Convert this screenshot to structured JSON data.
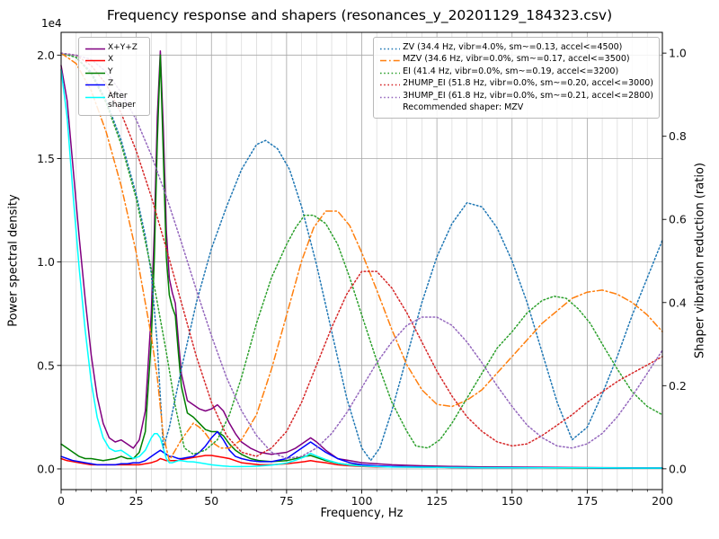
{
  "chart_data": {
    "type": "line",
    "title": "Frequency response and shapers (resonances_y_20201129_184323.csv)",
    "xlabel": "Frequency, Hz",
    "ylabel_left": "Power spectral density",
    "ylabel_right": "Shaper vibration reduction (ratio)",
    "offset_label_left": "1e4",
    "xlim": [
      0,
      200
    ],
    "xticks": [
      0,
      25,
      50,
      75,
      100,
      125,
      150,
      175,
      200
    ],
    "ylim_left": [
      -0.1,
      2.11
    ],
    "yticks_left": [
      0,
      0.5,
      1.0,
      1.5,
      2.0
    ],
    "ytick_labels_left": [
      "0.0",
      "0.5",
      "1.0",
      "1.5",
      "2.0"
    ],
    "ylim_right": [
      -0.05,
      1.05
    ],
    "yticks_right": [
      0.0,
      0.2,
      0.4,
      0.6,
      0.8,
      1.0
    ],
    "grid": {
      "major": true,
      "minor_x_step": 5
    },
    "recommended_note": "Recommended shaper: MZV",
    "psd_series": [
      {
        "key": "xyz",
        "label": "X+Y+Z",
        "color": "#800080",
        "style": "solid",
        "x": [
          0,
          2,
          4,
          6,
          8,
          10,
          12,
          14,
          16,
          18,
          20,
          22,
          24,
          26,
          28,
          30,
          31,
          32,
          33,
          34,
          35,
          36,
          37,
          38,
          39,
          40,
          42,
          44,
          46,
          48,
          50,
          52,
          54,
          56,
          58,
          60,
          63,
          66,
          70,
          75,
          78,
          81,
          83,
          85,
          88,
          92,
          96,
          100,
          105,
          110,
          120,
          130,
          140,
          150,
          160,
          170,
          180,
          190,
          200
        ],
        "y": [
          1.95,
          1.78,
          1.45,
          1.12,
          0.82,
          0.55,
          0.35,
          0.22,
          0.15,
          0.13,
          0.14,
          0.12,
          0.1,
          0.14,
          0.28,
          0.75,
          1.15,
          1.7,
          2.02,
          1.65,
          1.15,
          0.92,
          0.85,
          0.8,
          0.62,
          0.46,
          0.33,
          0.31,
          0.29,
          0.28,
          0.29,
          0.31,
          0.28,
          0.22,
          0.17,
          0.13,
          0.1,
          0.08,
          0.07,
          0.08,
          0.1,
          0.13,
          0.15,
          0.13,
          0.09,
          0.05,
          0.04,
          0.03,
          0.025,
          0.02,
          0.015,
          0.012,
          0.01,
          0.009,
          0.008,
          0.007,
          0.006,
          0.005,
          0.005
        ]
      },
      {
        "key": "x",
        "label": "X",
        "color": "#ff0000",
        "style": "solid",
        "x": [
          0,
          2,
          4,
          6,
          8,
          10,
          12,
          14,
          16,
          18,
          20,
          22,
          24,
          26,
          28,
          30,
          31,
          32,
          33,
          34,
          35,
          36,
          37,
          38,
          39,
          40,
          42,
          44,
          46,
          48,
          50,
          52,
          54,
          56,
          58,
          60,
          63,
          66,
          70,
          75,
          78,
          81,
          83,
          85,
          88,
          92,
          96,
          100,
          105,
          110,
          120,
          130,
          140,
          150,
          160,
          170,
          180,
          190,
          200
        ],
        "y": [
          0.05,
          0.04,
          0.035,
          0.03,
          0.025,
          0.02,
          0.02,
          0.02,
          0.02,
          0.02,
          0.02,
          0.02,
          0.02,
          0.02,
          0.025,
          0.03,
          0.035,
          0.04,
          0.05,
          0.045,
          0.04,
          0.04,
          0.04,
          0.04,
          0.04,
          0.045,
          0.05,
          0.055,
          0.06,
          0.065,
          0.065,
          0.06,
          0.055,
          0.05,
          0.04,
          0.03,
          0.025,
          0.02,
          0.02,
          0.025,
          0.03,
          0.035,
          0.04,
          0.035,
          0.03,
          0.02,
          0.015,
          0.012,
          0.01,
          0.01,
          0.008,
          0.007,
          0.006,
          0.006,
          0.005,
          0.005,
          0.004,
          0.004,
          0.004
        ]
      },
      {
        "key": "y",
        "label": "Y",
        "color": "#008000",
        "style": "solid",
        "x": [
          0,
          2,
          4,
          6,
          8,
          10,
          12,
          14,
          16,
          18,
          20,
          22,
          24,
          26,
          28,
          30,
          31,
          32,
          33,
          34,
          35,
          36,
          37,
          38,
          39,
          40,
          42,
          44,
          46,
          48,
          50,
          52,
          54,
          56,
          58,
          60,
          63,
          66,
          70,
          75,
          78,
          81,
          83,
          85,
          88,
          92,
          96,
          100,
          105,
          110,
          120,
          130,
          140,
          150,
          160,
          170,
          180,
          190,
          200
        ],
        "y": [
          0.12,
          0.1,
          0.08,
          0.06,
          0.05,
          0.05,
          0.045,
          0.04,
          0.045,
          0.05,
          0.06,
          0.05,
          0.05,
          0.08,
          0.18,
          0.62,
          1.02,
          1.58,
          2.0,
          1.52,
          1.02,
          0.84,
          0.78,
          0.74,
          0.56,
          0.4,
          0.27,
          0.25,
          0.22,
          0.19,
          0.18,
          0.18,
          0.16,
          0.12,
          0.09,
          0.07,
          0.05,
          0.04,
          0.035,
          0.04,
          0.05,
          0.06,
          0.065,
          0.055,
          0.04,
          0.027,
          0.02,
          0.016,
          0.013,
          0.011,
          0.009,
          0.007,
          0.006,
          0.005,
          0.005,
          0.004,
          0.004,
          0.003,
          0.003
        ]
      },
      {
        "key": "z",
        "label": "Z",
        "color": "#0000ff",
        "style": "solid",
        "x": [
          0,
          2,
          4,
          6,
          8,
          10,
          12,
          14,
          16,
          18,
          20,
          22,
          24,
          26,
          28,
          30,
          31,
          32,
          33,
          34,
          35,
          36,
          37,
          38,
          39,
          40,
          42,
          44,
          46,
          48,
          50,
          52,
          54,
          56,
          58,
          60,
          63,
          66,
          70,
          75,
          78,
          81,
          83,
          85,
          88,
          92,
          96,
          100,
          105,
          110,
          120,
          130,
          140,
          150,
          160,
          170,
          180,
          190,
          200
        ],
        "y": [
          0.06,
          0.05,
          0.04,
          0.035,
          0.03,
          0.025,
          0.02,
          0.02,
          0.02,
          0.02,
          0.025,
          0.025,
          0.03,
          0.03,
          0.04,
          0.06,
          0.07,
          0.08,
          0.09,
          0.08,
          0.07,
          0.06,
          0.06,
          0.055,
          0.05,
          0.05,
          0.055,
          0.06,
          0.08,
          0.11,
          0.15,
          0.18,
          0.14,
          0.09,
          0.06,
          0.05,
          0.04,
          0.035,
          0.035,
          0.05,
          0.08,
          0.11,
          0.13,
          0.11,
          0.08,
          0.05,
          0.03,
          0.02,
          0.015,
          0.012,
          0.009,
          0.007,
          0.006,
          0.006,
          0.005,
          0.005,
          0.004,
          0.004,
          0.004
        ]
      },
      {
        "key": "after_shaper",
        "label": "After shaper",
        "color": "#00ffff",
        "style": "solid",
        "x": [
          0,
          2,
          4,
          6,
          8,
          10,
          12,
          14,
          16,
          18,
          20,
          22,
          24,
          26,
          28,
          30,
          31,
          32,
          33,
          34,
          35,
          36,
          37,
          38,
          39,
          40,
          42,
          44,
          46,
          48,
          50,
          52,
          54,
          56,
          58,
          60,
          63,
          66,
          70,
          75,
          78,
          81,
          83,
          85,
          88,
          92,
          96,
          100,
          105,
          110,
          120,
          130,
          140,
          150,
          160,
          170,
          180,
          190,
          200
        ],
        "y": [
          1.93,
          1.7,
          1.32,
          0.97,
          0.67,
          0.42,
          0.25,
          0.15,
          0.1,
          0.085,
          0.09,
          0.07,
          0.05,
          0.06,
          0.09,
          0.15,
          0.17,
          0.17,
          0.15,
          0.1,
          0.05,
          0.03,
          0.03,
          0.035,
          0.04,
          0.04,
          0.035,
          0.034,
          0.03,
          0.025,
          0.02,
          0.017,
          0.014,
          0.012,
          0.011,
          0.011,
          0.012,
          0.014,
          0.018,
          0.028,
          0.042,
          0.058,
          0.075,
          0.062,
          0.045,
          0.028,
          0.018,
          0.014,
          0.011,
          0.009,
          0.008,
          0.007,
          0.006,
          0.006,
          0.005,
          0.005,
          0.005,
          0.004,
          0.004
        ]
      }
    ],
    "shaper_series": [
      {
        "key": "zv",
        "label": "ZV (34.4 Hz, vibr=4.0%, sm~=0.13, accel<=4500)",
        "color": "#1f77b4",
        "style": "dotted",
        "x": [
          0,
          5,
          10,
          15,
          20,
          25,
          28,
          30,
          32,
          34,
          36,
          38,
          40,
          45,
          50,
          55,
          60,
          65,
          68,
          72,
          76,
          80,
          85,
          90,
          95,
          100,
          103,
          106,
          110,
          115,
          120,
          125,
          130,
          135,
          140,
          145,
          150,
          155,
          160,
          165,
          170,
          175,
          180,
          185,
          190,
          195,
          200
        ],
        "y": [
          1.0,
          0.99,
          0.955,
          0.885,
          0.79,
          0.66,
          0.56,
          0.47,
          0.3,
          0.05,
          0.1,
          0.17,
          0.24,
          0.4,
          0.53,
          0.63,
          0.72,
          0.78,
          0.79,
          0.77,
          0.72,
          0.63,
          0.49,
          0.33,
          0.17,
          0.05,
          0.02,
          0.05,
          0.14,
          0.27,
          0.4,
          0.51,
          0.59,
          0.64,
          0.63,
          0.58,
          0.5,
          0.4,
          0.28,
          0.16,
          0.07,
          0.1,
          0.18,
          0.27,
          0.37,
          0.46,
          0.55
        ]
      },
      {
        "key": "mzv",
        "label": "MZV (34.6 Hz, vibr=0.0%, sm~=0.17, accel<=3500)",
        "color": "#ff7f0e",
        "style": "dashdot",
        "x": [
          0,
          5,
          10,
          15,
          20,
          25,
          30,
          32,
          34,
          36,
          38,
          40,
          42,
          44,
          46,
          48,
          50,
          53,
          56,
          60,
          65,
          70,
          75,
          80,
          84,
          88,
          92,
          96,
          100,
          105,
          110,
          115,
          120,
          125,
          130,
          135,
          140,
          145,
          150,
          155,
          160,
          165,
          170,
          175,
          180,
          185,
          190,
          195,
          200
        ],
        "y": [
          1.0,
          0.975,
          0.91,
          0.81,
          0.68,
          0.52,
          0.32,
          0.22,
          0.08,
          0.02,
          0.045,
          0.07,
          0.09,
          0.11,
          0.1,
          0.085,
          0.065,
          0.05,
          0.05,
          0.07,
          0.13,
          0.24,
          0.37,
          0.5,
          0.58,
          0.62,
          0.62,
          0.585,
          0.52,
          0.43,
          0.335,
          0.25,
          0.19,
          0.155,
          0.15,
          0.165,
          0.19,
          0.23,
          0.27,
          0.31,
          0.35,
          0.38,
          0.41,
          0.425,
          0.43,
          0.42,
          0.4,
          0.37,
          0.33
        ]
      },
      {
        "key": "ei",
        "label": "EI (41.4 Hz, vibr=0.0%, sm~=0.19, accel<=3200)",
        "color": "#2ca02c",
        "style": "dotted",
        "x": [
          0,
          5,
          10,
          15,
          20,
          25,
          30,
          35,
          38,
          41,
          44,
          48,
          52,
          56,
          60,
          65,
          70,
          75,
          78,
          81,
          84,
          88,
          92,
          96,
          100,
          105,
          110,
          115,
          118,
          122,
          126,
          130,
          135,
          140,
          145,
          150,
          155,
          160,
          164,
          168,
          172,
          176,
          180,
          185,
          190,
          195,
          200
        ],
        "y": [
          1.0,
          0.99,
          0.95,
          0.88,
          0.78,
          0.65,
          0.48,
          0.28,
          0.15,
          0.05,
          0.035,
          0.045,
          0.07,
          0.13,
          0.22,
          0.35,
          0.46,
          0.54,
          0.58,
          0.61,
          0.61,
          0.59,
          0.54,
          0.46,
          0.37,
          0.26,
          0.16,
          0.09,
          0.055,
          0.05,
          0.07,
          0.11,
          0.17,
          0.23,
          0.29,
          0.33,
          0.375,
          0.405,
          0.415,
          0.41,
          0.385,
          0.35,
          0.3,
          0.24,
          0.185,
          0.15,
          0.13
        ]
      },
      {
        "key": "2hump_ei",
        "label": "2HUMP_EI (51.8 Hz, vibr=0.0%, sm~=0.20, accel<=3000)",
        "color": "#d62728",
        "style": "dotted",
        "x": [
          0,
          5,
          10,
          15,
          20,
          25,
          30,
          35,
          40,
          45,
          50,
          55,
          60,
          65,
          70,
          75,
          80,
          85,
          90,
          95,
          100,
          105,
          110,
          115,
          120,
          125,
          130,
          135,
          140,
          145,
          150,
          155,
          160,
          165,
          170,
          175,
          180,
          185,
          190,
          195,
          200
        ],
        "y": [
          1.0,
          0.995,
          0.97,
          0.925,
          0.855,
          0.765,
          0.655,
          0.53,
          0.4,
          0.27,
          0.16,
          0.08,
          0.04,
          0.03,
          0.05,
          0.09,
          0.16,
          0.25,
          0.34,
          0.42,
          0.475,
          0.475,
          0.435,
          0.375,
          0.305,
          0.235,
          0.175,
          0.125,
          0.09,
          0.065,
          0.055,
          0.06,
          0.08,
          0.105,
          0.13,
          0.16,
          0.185,
          0.21,
          0.23,
          0.25,
          0.27
        ]
      },
      {
        "key": "3hump_ei",
        "label": "3HUMP_EI (61.8 Hz, vibr=0.0%, sm~=0.21, accel<=2800)",
        "color": "#9467bd",
        "style": "dotted",
        "x": [
          0,
          5,
          10,
          15,
          20,
          25,
          30,
          35,
          40,
          45,
          50,
          55,
          60,
          65,
          70,
          75,
          80,
          85,
          90,
          95,
          100,
          105,
          110,
          115,
          120,
          125,
          130,
          135,
          140,
          145,
          150,
          155,
          160,
          165,
          170,
          175,
          180,
          185,
          190,
          195,
          200
        ],
        "y": [
          1.0,
          0.995,
          0.985,
          0.955,
          0.905,
          0.84,
          0.755,
          0.655,
          0.545,
          0.43,
          0.32,
          0.22,
          0.14,
          0.08,
          0.04,
          0.025,
          0.03,
          0.05,
          0.085,
          0.135,
          0.195,
          0.255,
          0.305,
          0.345,
          0.365,
          0.365,
          0.345,
          0.305,
          0.255,
          0.2,
          0.15,
          0.105,
          0.075,
          0.055,
          0.05,
          0.06,
          0.085,
          0.125,
          0.175,
          0.23,
          0.285
        ]
      }
    ]
  }
}
